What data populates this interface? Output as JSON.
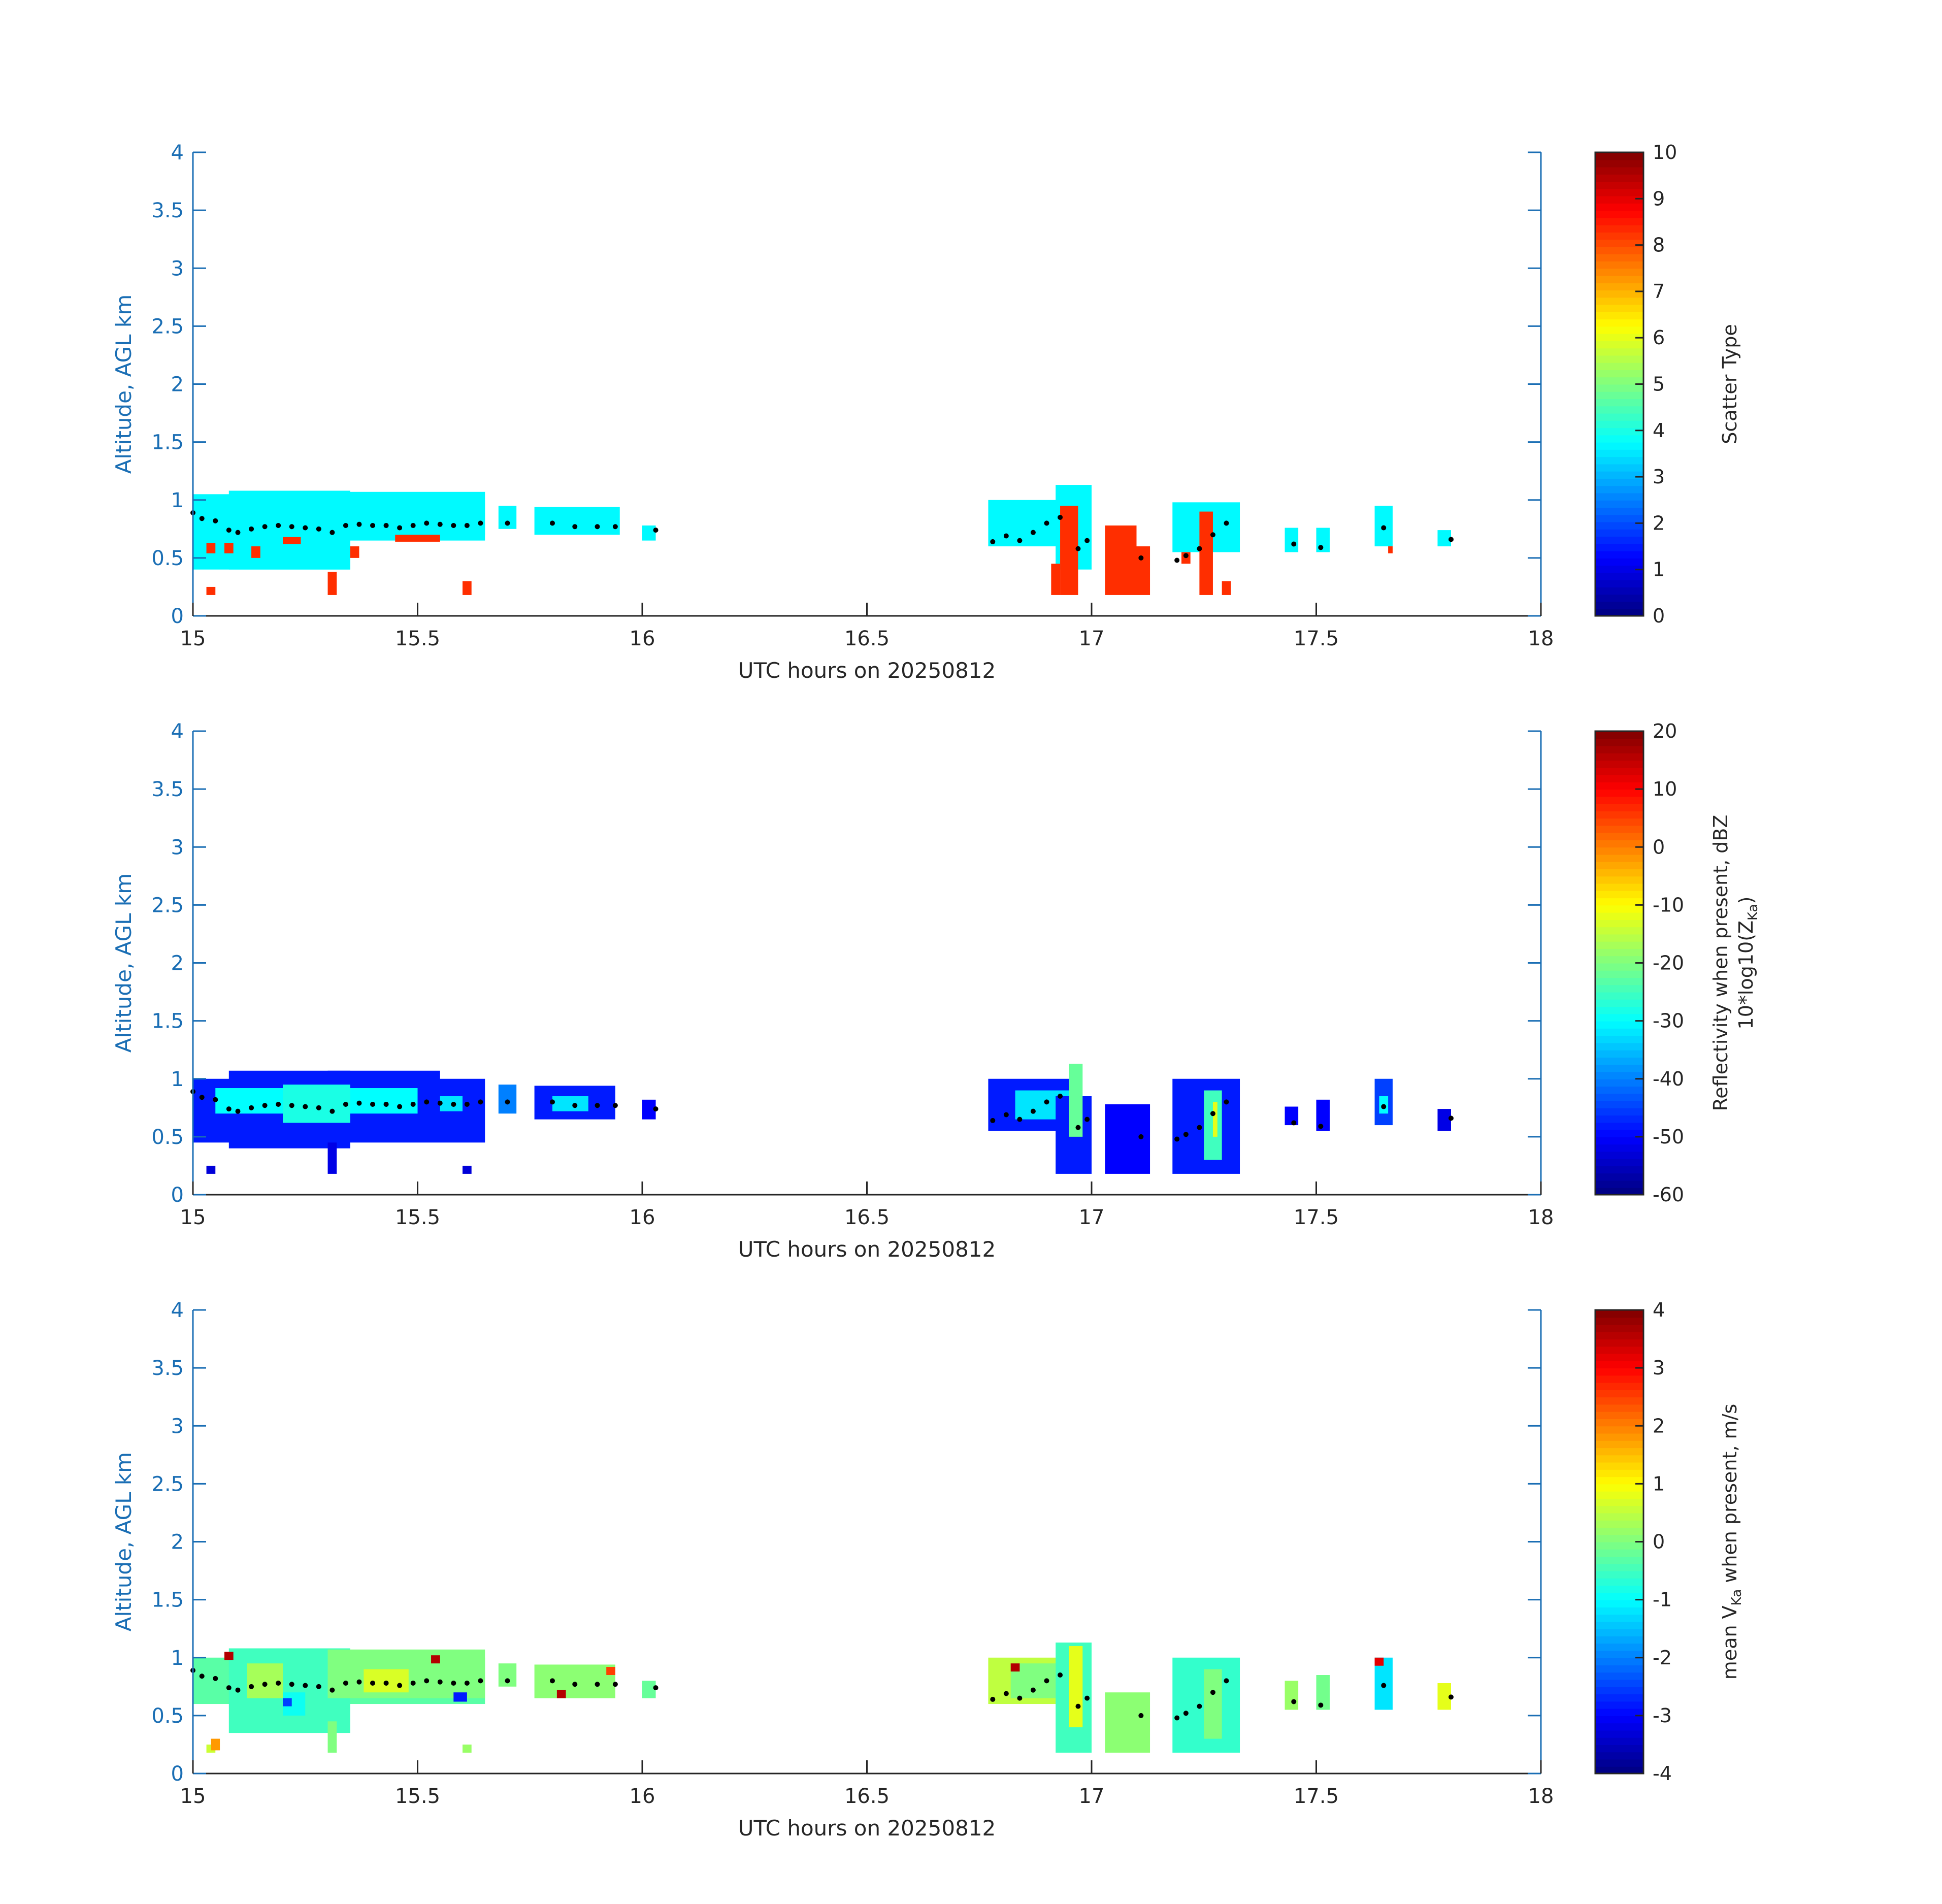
{
  "chart_data": [
    {
      "type": "heatmap",
      "panel": "scatter-type",
      "xlabel": "UTC hours on 20250812",
      "ylabel": "Altitude, AGL km",
      "xlim": [
        15,
        18
      ],
      "ylim": [
        0,
        4
      ],
      "xticks": [
        "15",
        "15.5",
        "16",
        "16.5",
        "17",
        "17.5",
        "18"
      ],
      "yticks": [
        "0",
        "0.5",
        "1",
        "1.5",
        "2",
        "2.5",
        "3",
        "3.5",
        "4"
      ],
      "colorbar": {
        "label": "Scatter Type",
        "label_sub": "",
        "label_tail": "",
        "label2": "",
        "label2_sub": "",
        "label2_tail": "",
        "clim": [
          0,
          10
        ],
        "ticks": [
          "0",
          "1",
          "2",
          "3",
          "4",
          "5",
          "6",
          "7",
          "8",
          "9",
          "10"
        ]
      },
      "cloud_top_dots": [
        [
          15.0,
          0.89
        ],
        [
          15.02,
          0.84
        ],
        [
          15.05,
          0.82
        ],
        [
          15.08,
          0.74
        ],
        [
          15.1,
          0.72
        ],
        [
          15.13,
          0.75
        ],
        [
          15.16,
          0.77
        ],
        [
          15.19,
          0.78
        ],
        [
          15.22,
          0.77
        ],
        [
          15.25,
          0.76
        ],
        [
          15.28,
          0.75
        ],
        [
          15.31,
          0.72
        ],
        [
          15.34,
          0.78
        ],
        [
          15.37,
          0.79
        ],
        [
          15.4,
          0.78
        ],
        [
          15.43,
          0.78
        ],
        [
          15.46,
          0.76
        ],
        [
          15.49,
          0.78
        ],
        [
          15.52,
          0.8
        ],
        [
          15.55,
          0.79
        ],
        [
          15.58,
          0.78
        ],
        [
          15.61,
          0.78
        ],
        [
          15.64,
          0.8
        ],
        [
          15.7,
          0.8
        ],
        [
          15.8,
          0.8
        ],
        [
          15.85,
          0.77
        ],
        [
          15.9,
          0.77
        ],
        [
          15.94,
          0.77
        ],
        [
          16.03,
          0.74
        ],
        [
          16.78,
          0.64
        ],
        [
          16.81,
          0.69
        ],
        [
          16.84,
          0.65
        ],
        [
          16.87,
          0.72
        ],
        [
          16.9,
          0.8
        ],
        [
          16.93,
          0.85
        ],
        [
          16.97,
          0.58
        ],
        [
          16.99,
          0.65
        ],
        [
          17.11,
          0.5
        ],
        [
          17.19,
          0.48
        ],
        [
          17.21,
          0.52
        ],
        [
          17.24,
          0.58
        ],
        [
          17.27,
          0.7
        ],
        [
          17.3,
          0.8
        ],
        [
          17.45,
          0.62
        ],
        [
          17.51,
          0.59
        ],
        [
          17.65,
          0.76
        ],
        [
          17.8,
          0.66
        ]
      ],
      "patches": [
        [
          15.0,
          15.35,
          0.4,
          1.05,
          3.7
        ],
        [
          15.08,
          15.35,
          0.4,
          1.08,
          3.7
        ],
        [
          15.0,
          15.65,
          0.65,
          1.0,
          3.7
        ],
        [
          15.3,
          15.65,
          0.7,
          1.07,
          3.7
        ],
        [
          15.68,
          15.72,
          0.75,
          0.95,
          3.7
        ],
        [
          15.76,
          15.95,
          0.7,
          0.94,
          3.7
        ],
        [
          16.0,
          16.03,
          0.65,
          0.78,
          3.7
        ],
        [
          16.77,
          16.97,
          0.6,
          1.0,
          3.7
        ],
        [
          16.92,
          17.0,
          0.4,
          1.13,
          3.7
        ],
        [
          17.18,
          17.33,
          0.55,
          0.98,
          3.7
        ],
        [
          17.43,
          17.46,
          0.55,
          0.76,
          3.7
        ],
        [
          17.5,
          17.53,
          0.55,
          0.76,
          3.7
        ],
        [
          17.63,
          17.67,
          0.6,
          0.95,
          3.7
        ],
        [
          17.77,
          17.8,
          0.6,
          0.74,
          3.7
        ],
        [
          15.03,
          15.05,
          0.54,
          0.63,
          8.3
        ],
        [
          15.07,
          15.09,
          0.54,
          0.63,
          8.3
        ],
        [
          15.13,
          15.15,
          0.5,
          0.6,
          8.3
        ],
        [
          15.2,
          15.24,
          0.62,
          0.68,
          8.3
        ],
        [
          15.03,
          15.05,
          0.18,
          0.25,
          8.3
        ],
        [
          15.3,
          15.32,
          0.18,
          0.38,
          8.3
        ],
        [
          15.6,
          15.62,
          0.18,
          0.3,
          8.3
        ],
        [
          15.35,
          15.37,
          0.5,
          0.6,
          8.3
        ],
        [
          15.45,
          15.55,
          0.64,
          0.7,
          8.3
        ],
        [
          16.93,
          16.97,
          0.18,
          0.95,
          8.3
        ],
        [
          16.91,
          16.93,
          0.18,
          0.45,
          8.3
        ],
        [
          17.03,
          17.1,
          0.18,
          0.78,
          8.3
        ],
        [
          17.1,
          17.13,
          0.18,
          0.6,
          8.3
        ],
        [
          17.2,
          17.22,
          0.45,
          0.55,
          8.3
        ],
        [
          17.24,
          17.27,
          0.18,
          0.9,
          8.3
        ],
        [
          17.29,
          17.31,
          0.18,
          0.3,
          8.3
        ],
        [
          17.66,
          17.67,
          0.54,
          0.6,
          8.3
        ]
      ]
    },
    {
      "type": "heatmap",
      "panel": "reflectivity",
      "xlabel": "UTC hours on 20250812",
      "ylabel": "Altitude, AGL km",
      "xlim": [
        15,
        18
      ],
      "ylim": [
        0,
        4
      ],
      "xticks": [
        "15",
        "15.5",
        "16",
        "16.5",
        "17",
        "17.5",
        "18"
      ],
      "yticks": [
        "0",
        "0.5",
        "1",
        "1.5",
        "2",
        "2.5",
        "3",
        "3.5",
        "4"
      ],
      "colorbar": {
        "label": "Reflectivity when present, dBZ",
        "label_sub": "",
        "label_tail": "",
        "label2": "10*log10(Z",
        "label2_sub": "Ka",
        "label2_tail": ")",
        "clim": [
          -60,
          20
        ],
        "ticks": [
          "-60",
          "-50",
          "-40",
          "-30",
          "-20",
          "-10",
          "0",
          "10",
          "20"
        ]
      },
      "cloud_top_dots": [
        [
          15.0,
          0.89
        ],
        [
          15.02,
          0.84
        ],
        [
          15.05,
          0.82
        ],
        [
          15.08,
          0.74
        ],
        [
          15.1,
          0.72
        ],
        [
          15.13,
          0.75
        ],
        [
          15.16,
          0.77
        ],
        [
          15.19,
          0.78
        ],
        [
          15.22,
          0.77
        ],
        [
          15.25,
          0.76
        ],
        [
          15.28,
          0.75
        ],
        [
          15.31,
          0.72
        ],
        [
          15.34,
          0.78
        ],
        [
          15.37,
          0.79
        ],
        [
          15.4,
          0.78
        ],
        [
          15.43,
          0.78
        ],
        [
          15.46,
          0.76
        ],
        [
          15.49,
          0.78
        ],
        [
          15.52,
          0.8
        ],
        [
          15.55,
          0.79
        ],
        [
          15.58,
          0.78
        ],
        [
          15.61,
          0.78
        ],
        [
          15.64,
          0.8
        ],
        [
          15.7,
          0.8
        ],
        [
          15.8,
          0.8
        ],
        [
          15.85,
          0.77
        ],
        [
          15.9,
          0.77
        ],
        [
          15.94,
          0.77
        ],
        [
          16.03,
          0.74
        ],
        [
          16.78,
          0.64
        ],
        [
          16.81,
          0.69
        ],
        [
          16.84,
          0.65
        ],
        [
          16.87,
          0.72
        ],
        [
          16.9,
          0.8
        ],
        [
          16.93,
          0.85
        ],
        [
          16.97,
          0.58
        ],
        [
          16.99,
          0.65
        ],
        [
          17.11,
          0.5
        ],
        [
          17.19,
          0.48
        ],
        [
          17.21,
          0.52
        ],
        [
          17.24,
          0.58
        ],
        [
          17.27,
          0.7
        ],
        [
          17.3,
          0.8
        ],
        [
          17.45,
          0.62
        ],
        [
          17.51,
          0.59
        ],
        [
          17.65,
          0.76
        ],
        [
          17.8,
          0.66
        ]
      ],
      "patches": [
        [
          15.0,
          15.65,
          0.45,
          1.0,
          -48
        ],
        [
          15.08,
          15.35,
          0.4,
          1.07,
          -48
        ],
        [
          15.3,
          15.55,
          0.65,
          1.07,
          -48
        ],
        [
          15.3,
          15.32,
          0.18,
          0.45,
          -52
        ],
        [
          15.03,
          15.05,
          0.18,
          0.25,
          -53
        ],
        [
          15.6,
          15.62,
          0.18,
          0.25,
          -53
        ],
        [
          15.05,
          15.5,
          0.7,
          0.92,
          -30
        ],
        [
          15.2,
          15.35,
          0.62,
          0.95,
          -28
        ],
        [
          15.55,
          15.6,
          0.72,
          0.85,
          -32
        ],
        [
          15.68,
          15.72,
          0.7,
          0.95,
          -40
        ],
        [
          15.76,
          15.94,
          0.65,
          0.94,
          -48
        ],
        [
          15.8,
          15.88,
          0.72,
          0.85,
          -32
        ],
        [
          16.0,
          16.03,
          0.65,
          0.82,
          -50
        ],
        [
          16.77,
          16.97,
          0.55,
          1.0,
          -48
        ],
        [
          16.83,
          16.95,
          0.65,
          0.9,
          -32
        ],
        [
          16.92,
          17.0,
          0.18,
          0.85,
          -48
        ],
        [
          16.95,
          16.98,
          0.5,
          1.13,
          -22
        ],
        [
          17.03,
          17.13,
          0.18,
          0.78,
          -50
        ],
        [
          17.18,
          17.33,
          0.18,
          1.0,
          -48
        ],
        [
          17.25,
          17.29,
          0.3,
          0.9,
          -25
        ],
        [
          17.27,
          17.28,
          0.5,
          0.8,
          -12
        ],
        [
          17.43,
          17.46,
          0.6,
          0.76,
          -50
        ],
        [
          17.5,
          17.53,
          0.55,
          0.82,
          -50
        ],
        [
          17.63,
          17.67,
          0.6,
          1.0,
          -45
        ],
        [
          17.64,
          17.66,
          0.7,
          0.85,
          -30
        ],
        [
          17.77,
          17.8,
          0.55,
          0.74,
          -52
        ]
      ]
    },
    {
      "type": "heatmap",
      "panel": "velocity",
      "xlabel": "UTC hours on 20250812",
      "ylabel": "Altitude, AGL km",
      "xlim": [
        15,
        18
      ],
      "ylim": [
        0,
        4
      ],
      "xticks": [
        "15",
        "15.5",
        "16",
        "16.5",
        "17",
        "17.5",
        "18"
      ],
      "yticks": [
        "0",
        "0.5",
        "1",
        "1.5",
        "2",
        "2.5",
        "3",
        "3.5",
        "4"
      ],
      "colorbar": {
        "label": "mean V",
        "label_sub": "Ka",
        "label_tail": " when present, m/s",
        "label2": "",
        "label2_sub": "",
        "label2_tail": "",
        "clim": [
          -4,
          4
        ],
        "ticks": [
          "-4",
          "-3",
          "-2",
          "-1",
          "0",
          "1",
          "2",
          "3",
          "4"
        ]
      },
      "cloud_top_dots": [
        [
          15.0,
          0.89
        ],
        [
          15.02,
          0.84
        ],
        [
          15.05,
          0.82
        ],
        [
          15.08,
          0.74
        ],
        [
          15.1,
          0.72
        ],
        [
          15.13,
          0.75
        ],
        [
          15.16,
          0.77
        ],
        [
          15.19,
          0.78
        ],
        [
          15.22,
          0.77
        ],
        [
          15.25,
          0.76
        ],
        [
          15.28,
          0.75
        ],
        [
          15.31,
          0.72
        ],
        [
          15.34,
          0.78
        ],
        [
          15.37,
          0.79
        ],
        [
          15.4,
          0.78
        ],
        [
          15.43,
          0.78
        ],
        [
          15.46,
          0.76
        ],
        [
          15.49,
          0.78
        ],
        [
          15.52,
          0.8
        ],
        [
          15.55,
          0.79
        ],
        [
          15.58,
          0.78
        ],
        [
          15.61,
          0.78
        ],
        [
          15.64,
          0.8
        ],
        [
          15.7,
          0.8
        ],
        [
          15.8,
          0.8
        ],
        [
          15.85,
          0.77
        ],
        [
          15.9,
          0.77
        ],
        [
          15.94,
          0.77
        ],
        [
          16.03,
          0.74
        ],
        [
          16.78,
          0.64
        ],
        [
          16.81,
          0.69
        ],
        [
          16.84,
          0.65
        ],
        [
          16.87,
          0.72
        ],
        [
          16.9,
          0.8
        ],
        [
          16.93,
          0.85
        ],
        [
          16.97,
          0.58
        ],
        [
          16.99,
          0.65
        ],
        [
          17.11,
          0.5
        ],
        [
          17.19,
          0.48
        ],
        [
          17.21,
          0.52
        ],
        [
          17.24,
          0.58
        ],
        [
          17.27,
          0.7
        ],
        [
          17.3,
          0.8
        ],
        [
          17.45,
          0.62
        ],
        [
          17.51,
          0.59
        ],
        [
          17.65,
          0.76
        ],
        [
          17.8,
          0.66
        ]
      ],
      "patches": [
        [
          15.0,
          15.65,
          0.6,
          1.0,
          -0.3
        ],
        [
          15.08,
          15.35,
          0.35,
          1.08,
          -0.5
        ],
        [
          15.3,
          15.65,
          0.65,
          1.07,
          0.0
        ],
        [
          15.3,
          15.32,
          0.18,
          0.45,
          0.0
        ],
        [
          15.12,
          15.2,
          0.65,
          0.95,
          0.3
        ],
        [
          15.38,
          15.48,
          0.7,
          0.9,
          0.7
        ],
        [
          15.2,
          15.25,
          0.5,
          0.7,
          -0.9
        ],
        [
          15.03,
          15.05,
          0.18,
          0.25,
          0.6
        ],
        [
          15.6,
          15.62,
          0.18,
          0.25,
          0.2
        ],
        [
          15.68,
          15.72,
          0.75,
          0.95,
          0.0
        ],
        [
          15.76,
          15.94,
          0.65,
          0.94,
          0.1
        ],
        [
          16.0,
          16.03,
          0.65,
          0.8,
          -0.2
        ],
        [
          16.77,
          16.97,
          0.6,
          1.0,
          0.5
        ],
        [
          16.82,
          16.92,
          0.65,
          0.95,
          0.0
        ],
        [
          16.92,
          17.0,
          0.18,
          1.13,
          -0.5
        ],
        [
          16.95,
          16.98,
          0.4,
          1.1,
          0.8
        ],
        [
          17.03,
          17.13,
          0.18,
          0.7,
          0.1
        ],
        [
          17.18,
          17.33,
          0.18,
          1.0,
          -0.6
        ],
        [
          17.25,
          17.29,
          0.3,
          0.9,
          0.0
        ],
        [
          17.43,
          17.46,
          0.55,
          0.8,
          0.2
        ],
        [
          17.5,
          17.53,
          0.55,
          0.85,
          -0.1
        ],
        [
          17.63,
          17.67,
          0.55,
          1.0,
          -1.2
        ],
        [
          17.77,
          17.8,
          0.55,
          0.78,
          0.8
        ],
        [
          15.07,
          15.09,
          0.98,
          1.05,
          3.6
        ],
        [
          15.53,
          15.55,
          0.95,
          1.02,
          3.6
        ],
        [
          15.81,
          15.83,
          0.65,
          0.72,
          3.6
        ],
        [
          15.92,
          15.94,
          0.85,
          0.92,
          2.5
        ],
        [
          16.82,
          16.84,
          0.88,
          0.95,
          3.6
        ],
        [
          17.63,
          17.65,
          0.93,
          1.0,
          3.2
        ],
        [
          15.04,
          15.06,
          0.2,
          0.3,
          1.8
        ],
        [
          15.58,
          15.61,
          0.62,
          0.7,
          -2.8
        ],
        [
          15.2,
          15.22,
          0.58,
          0.65,
          -2.5
        ]
      ]
    }
  ]
}
